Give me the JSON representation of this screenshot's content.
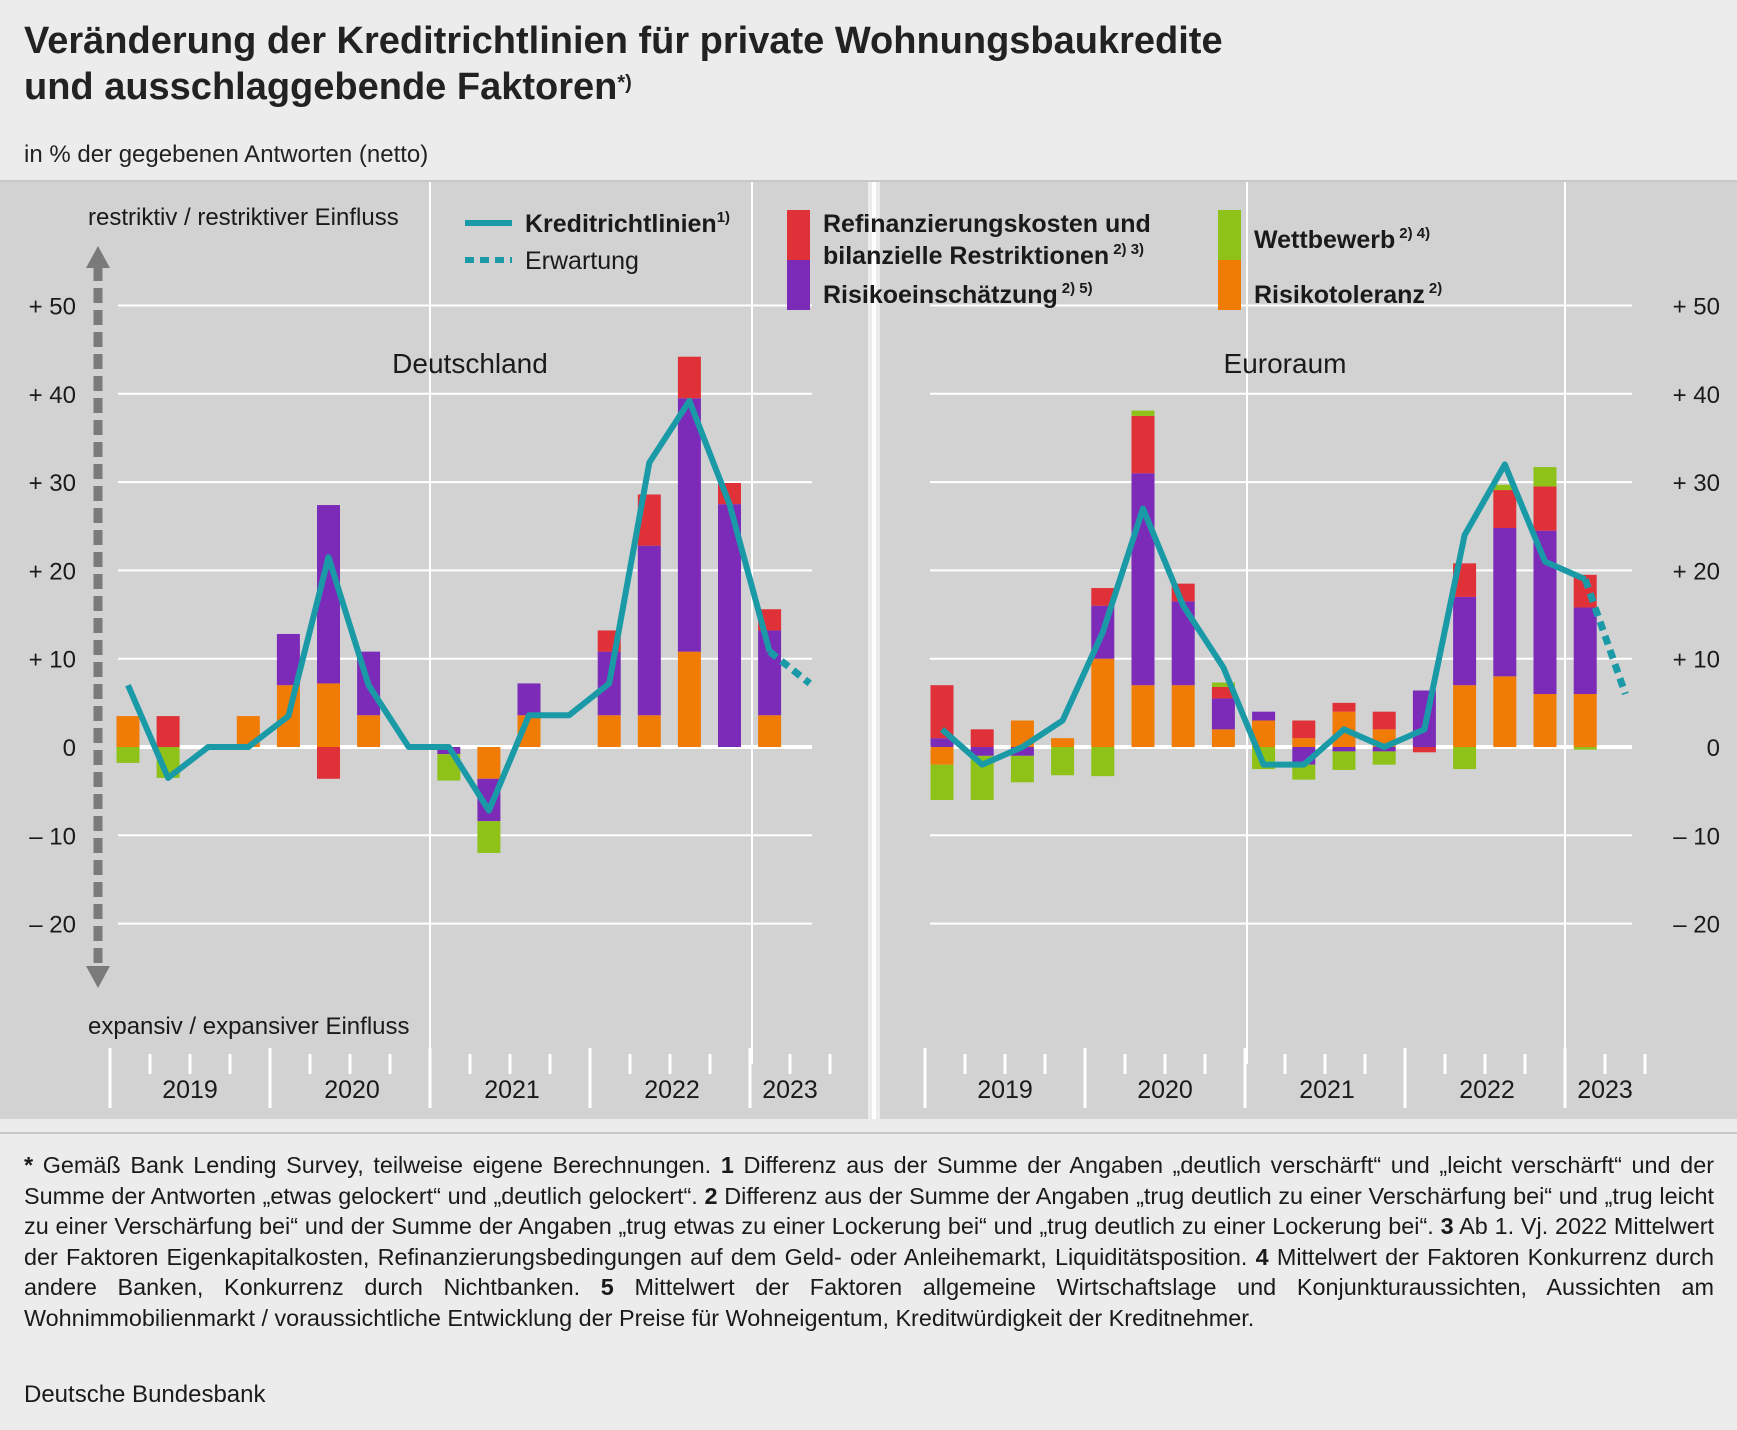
{
  "title": {
    "line1": "Veränderung der Kreditrichtlinien für private Wohnungsbaukredite",
    "line2": "und ausschlaggebende Faktoren",
    "footnote_mark": "*)"
  },
  "subtitle": "in % der gegebenen Antworten (netto)",
  "chart_data": {
    "type": "bar",
    "stacked": true,
    "y_axis": {
      "range": [
        -20,
        50
      ],
      "ticks": [
        50,
        40,
        30,
        20,
        10,
        0,
        -10,
        -20
      ],
      "tick_labels": [
        "+ 50",
        "+ 40",
        "+ 30",
        "+ 20",
        "+ 10",
        "0",
        "– 10",
        "– 20"
      ],
      "top_label": "restriktiv / restriktiver Einfluss",
      "bottom_label": "expansiv / expansiver Einfluss"
    },
    "x_axis": {
      "quarters": [
        "2019 Q1",
        "2019 Q2",
        "2019 Q3",
        "2019 Q4",
        "2020 Q1",
        "2020 Q2",
        "2020 Q3",
        "2020 Q4",
        "2021 Q1",
        "2021 Q2",
        "2021 Q3",
        "2021 Q4",
        "2022 Q1",
        "2022 Q2",
        "2022 Q3",
        "2022 Q4",
        "2023 Q1",
        "2023 Q2"
      ],
      "year_labels": [
        "2019",
        "2020",
        "2021",
        "2022",
        "2023"
      ]
    },
    "legend": {
      "line": "Kreditrichtlinien",
      "line_sup": "1)",
      "dashed": "Erwartung",
      "refi_line1": "Refinanzierungskosten und",
      "refi_line2": "bilanzielle Restriktionen",
      "refi_sup": "2) 3)",
      "risk": "Risikoeinschätzung",
      "risk_sup": "2) 5)",
      "comp": "Wettbewerb",
      "comp_sup": "2) 4)",
      "tol": "Risikotoleranz",
      "tol_sup": "2)"
    },
    "colors": {
      "refi": "#e03138",
      "risk": "#7b2bb7",
      "comp": "#8ec219",
      "tol": "#f07b05",
      "line": "#1a9aa7",
      "grid": "#ffffff",
      "panel": "#d2d2d2"
    },
    "panels": [
      {
        "name": "Deutschland",
        "factors": {
          "tol": [
            3.5,
            0,
            0,
            3.5,
            7,
            7.2,
            3.6,
            0,
            0,
            -3.6,
            3.6,
            0,
            3.6,
            3.6,
            10.8,
            0,
            3.6,
            null
          ],
          "risk": [
            0,
            0,
            0,
            0,
            5.8,
            20.2,
            7.2,
            0,
            -0.8,
            -4.8,
            3.6,
            0,
            7.2,
            19.2,
            28.7,
            27.5,
            9.6,
            null
          ],
          "refi": [
            0,
            3.5,
            0,
            0,
            0,
            -3.6,
            0,
            0,
            0,
            0,
            0,
            0,
            2.4,
            5.8,
            4.7,
            2.4,
            2.4,
            null
          ],
          "comp": [
            -1.8,
            -3.5,
            0,
            0,
            0,
            0,
            0,
            0,
            -3.0,
            -3.6,
            0,
            0,
            0,
            0,
            0,
            0,
            0,
            null
          ]
        },
        "line": [
          7,
          -3.5,
          0,
          0,
          3.5,
          21.5,
          7,
          0,
          0,
          -7.2,
          3.6,
          3.6,
          7.2,
          32.2,
          39.2,
          27.5,
          10.8,
          null
        ],
        "expectation": [
          10.8,
          7.2
        ]
      },
      {
        "name": "Euroraum",
        "factors": {
          "tol": [
            -2,
            0,
            3,
            1,
            10,
            7,
            7,
            2,
            3,
            1,
            4,
            2,
            0,
            7,
            8,
            6,
            6,
            null
          ],
          "risk": [
            1,
            -1,
            -1,
            0,
            6,
            24,
            9.5,
            3.5,
            1,
            -2,
            -0.5,
            -0.5,
            6.4,
            10,
            16.8,
            18.5,
            9.8,
            null
          ],
          "refi": [
            6,
            2,
            0,
            0,
            2,
            6.5,
            2,
            1.3,
            0,
            2,
            1,
            2,
            0,
            3.8,
            4.3,
            5,
            3.7,
            null
          ],
          "comp": [
            -4,
            -5,
            -3,
            -3.2,
            -3.3,
            0.6,
            0,
            0.5,
            -2.5,
            -1.7,
            -2.1,
            -1.5,
            0,
            -2.5,
            0.6,
            2.2,
            -0.3,
            null
          ],
          "refi_neg": [
            0,
            0,
            0,
            0,
            0,
            0,
            0,
            0,
            0,
            0,
            0,
            0,
            -0.6,
            0,
            0,
            0,
            0,
            null
          ]
        },
        "line": [
          2,
          -2,
          0,
          3,
          13,
          27,
          16,
          9,
          -2,
          -2,
          2,
          0,
          2,
          24,
          32,
          21,
          19,
          null
        ],
        "expectation": [
          19,
          6
        ]
      }
    ]
  },
  "notes": {
    "n0_mark": "*",
    "n0": "Gemäß Bank Lending Survey, teilweise eigene Berechnungen.",
    "n1_mark": "1",
    "n1": "Differenz aus der Summe der Angaben „deutlich verschärft“ und „leicht verschärft“ und der Summe der Antworten „etwas gelockert“ und „deutlich gelockert“.",
    "n2_mark": "2",
    "n2": "Differenz aus der Summe der Angaben „trug deutlich zu einer Verschärfung bei“ und „trug leicht zu einer Verschärfung bei“ und der Summe der Angaben „trug etwas zu einer Lockerung bei“ und „trug deutlich zu einer Lockerung bei“.",
    "n3_mark": "3",
    "n3": "Ab 1. Vj. 2022 Mittelwert der Faktoren Eigenkapitalkosten, Refinanzierungsbedingungen auf dem Geld- oder Anleihemarkt, Liquiditätsposition.",
    "n4_mark": "4",
    "n4": "Mittelwert der Faktoren Konkurrenz durch andere Banken, Konkurrenz durch Nichtbanken.",
    "n5_mark": "5",
    "n5": "Mittelwert der Faktoren allgemeine Wirtschaftslage und Konjunkturaussichten, Aussichten am Wohnimmobilienmarkt / voraussichtliche Entwicklung der Preise für Wohneigentum, Kreditwürdigkeit der Kreditnehmer."
  },
  "source": "Deutsche Bundesbank"
}
